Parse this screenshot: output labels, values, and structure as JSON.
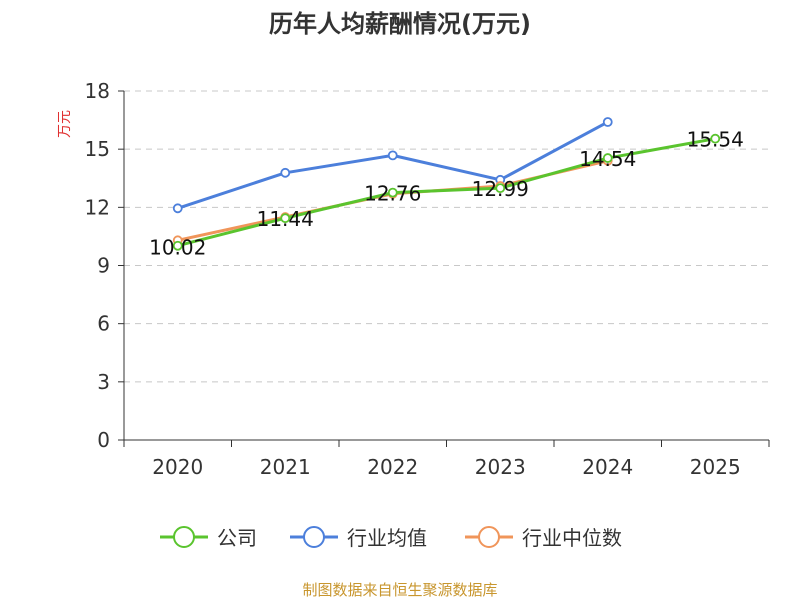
{
  "chart_data": {
    "type": "line",
    "title": "历年人均薪酬情况(万元)",
    "ylabel": "万元",
    "categories": [
      "2020",
      "2021",
      "2022",
      "2023",
      "2024",
      "2025"
    ],
    "ylim": [
      0,
      18
    ],
    "yticks": [
      0,
      3,
      6,
      9,
      12,
      15,
      18
    ],
    "grid": true,
    "series": [
      {
        "name": "公司",
        "values": [
          10.02,
          11.44,
          12.76,
          12.99,
          14.54,
          15.54
        ],
        "color": "#5ac42e",
        "labels": [
          "10.02",
          "11.44",
          "12.76",
          "12.99",
          "14.54",
          "15.54"
        ]
      },
      {
        "name": "行业均值",
        "values": [
          11.95,
          13.78,
          14.68,
          13.42,
          16.4,
          null
        ],
        "color": "#4c7fdb"
      },
      {
        "name": "行业中位数",
        "values": [
          10.3,
          11.5,
          12.7,
          13.1,
          14.4,
          null
        ],
        "color": "#f0955a"
      }
    ],
    "legend": "bottom",
    "source": "制图数据来自恒生聚源数据库"
  }
}
